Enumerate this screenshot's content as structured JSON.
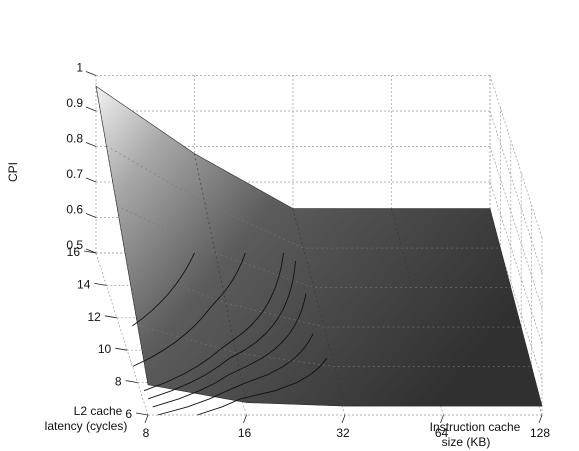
{
  "chart_data": {
    "type": "surface",
    "zlabel": "CPI",
    "xlabel_line1": "Instruction cache",
    "xlabel_line2": "size (KB)",
    "ylabel_line1": "L2 cache",
    "ylabel_line2": "latency (cycles)",
    "x_ticks": [
      8,
      16,
      32,
      64,
      128
    ],
    "y_ticks": [
      6,
      8,
      10,
      12,
      14,
      16
    ],
    "z_ticks": [
      "0.5",
      "0.6",
      "0.7",
      "0.8",
      "0.9",
      "1"
    ],
    "x_tick_labels": [
      "8",
      "16",
      "32",
      "64",
      "128"
    ],
    "y_tick_labels": [
      "6",
      "8",
      "10",
      "12",
      "14",
      "16"
    ],
    "zlim": [
      0.5,
      1.0
    ],
    "cpi_at_latency_16": [
      0.97,
      0.78,
      0.625,
      0.625,
      0.625
    ],
    "cpi_at_latency_6": [
      0.585,
      0.535,
      0.525,
      0.525,
      0.525
    ],
    "grid": true
  }
}
